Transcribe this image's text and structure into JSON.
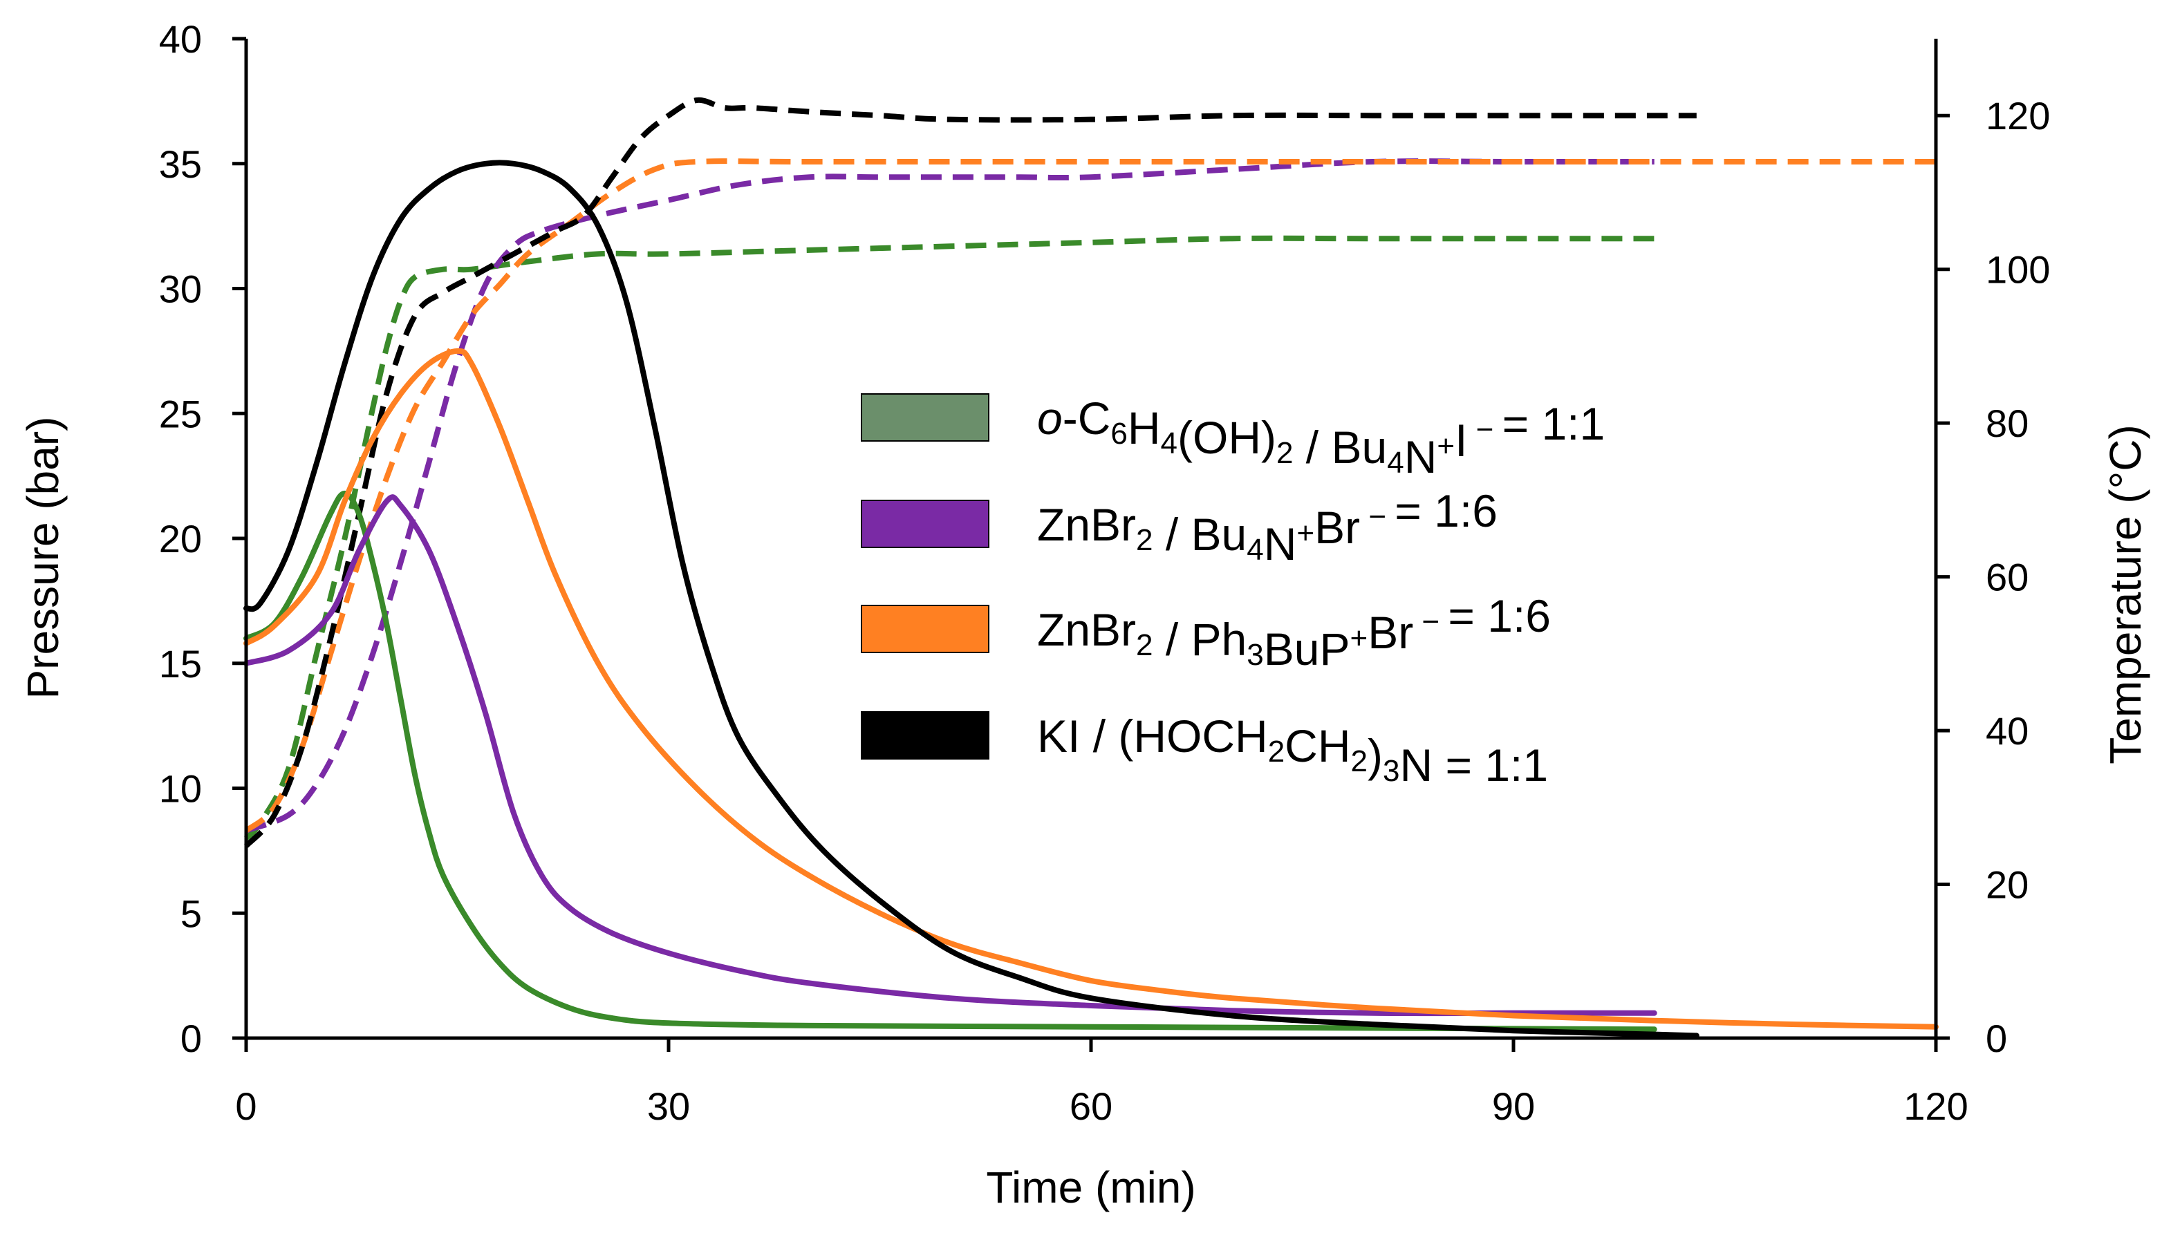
{
  "chart_data": {
    "type": "line",
    "title": "",
    "xlabel": "Time (min)",
    "ylabel": "Pressure (bar)",
    "y2label": "Temperature (°C)",
    "xlim": [
      0,
      120
    ],
    "ylim": [
      0,
      40
    ],
    "y2lim": [
      0,
      130
    ],
    "xticks": [
      "0",
      "30",
      "60",
      "90",
      "120"
    ],
    "yticks": [
      "0",
      "5",
      "10",
      "15",
      "20",
      "25",
      "30",
      "35",
      "40"
    ],
    "y2ticks": [
      "0",
      "20",
      "40",
      "60",
      "80",
      "100",
      "120"
    ],
    "grid": false,
    "legend_position": "center-right",
    "line_styles": {
      "pressure": "solid",
      "temperature": "dashed"
    },
    "series": [
      {
        "name": "o-C6H4(OH)2 / Bu4N+I− = 1:1",
        "legend": {
          "prefix": "o",
          "parts": [
            [
              "-C",
              ""
            ],
            [
              "6",
              "sub"
            ],
            [
              "H",
              ""
            ],
            [
              "4",
              "sub"
            ],
            [
              "(OH)",
              ""
            ],
            [
              "2",
              "sub"
            ],
            [
              " / Bu",
              ""
            ],
            [
              "4",
              "sub"
            ],
            [
              "N",
              ""
            ],
            [
              "+",
              "sup"
            ],
            [
              "I",
              ""
            ],
            [
              " − ",
              "sup"
            ],
            [
              "= 1:1",
              ""
            ]
          ]
        },
        "color": "#3a8a2a",
        "swatch_color": "#6b8f6b",
        "pressure": [
          [
            0,
            16
          ],
          [
            2,
            16.6
          ],
          [
            4,
            18.5
          ],
          [
            6,
            21
          ],
          [
            7,
            21.8
          ],
          [
            8,
            21
          ],
          [
            9,
            19
          ],
          [
            10,
            16.5
          ],
          [
            11,
            13.5
          ],
          [
            12,
            10.5
          ],
          [
            13,
            8.2
          ],
          [
            14,
            6.5
          ],
          [
            16,
            4.5
          ],
          [
            18,
            3
          ],
          [
            20,
            2
          ],
          [
            23,
            1.2
          ],
          [
            26,
            0.8
          ],
          [
            30,
            0.6
          ],
          [
            40,
            0.5
          ],
          [
            60,
            0.45
          ],
          [
            80,
            0.4
          ],
          [
            100,
            0.35
          ]
        ],
        "temperature": [
          [
            0,
            26
          ],
          [
            1,
            28
          ],
          [
            3,
            35
          ],
          [
            5,
            50
          ],
          [
            7,
            65
          ],
          [
            9,
            82
          ],
          [
            10,
            90
          ],
          [
            11,
            96
          ],
          [
            12,
            99
          ],
          [
            14,
            100
          ],
          [
            16,
            100
          ],
          [
            20,
            101
          ],
          [
            25,
            102
          ],
          [
            30,
            102
          ],
          [
            40,
            102.5
          ],
          [
            50,
            103
          ],
          [
            60,
            103.5
          ],
          [
            70,
            104
          ],
          [
            80,
            104
          ],
          [
            90,
            104
          ],
          [
            100,
            104
          ]
        ]
      },
      {
        "name": "ZnBr2 / Bu4N+Br− = 1:6",
        "legend": {
          "prefix": "",
          "parts": [
            [
              "ZnBr",
              ""
            ],
            [
              "2",
              "sub"
            ],
            [
              " / Bu",
              ""
            ],
            [
              "4",
              "sub"
            ],
            [
              "N",
              ""
            ],
            [
              "+",
              "sup"
            ],
            [
              "Br",
              ""
            ],
            [
              " − ",
              "sup"
            ],
            [
              "= 1:6",
              ""
            ]
          ]
        },
        "color": "#7a2aa5",
        "swatch_color": "#7a2aa5",
        "pressure": [
          [
            0,
            15
          ],
          [
            3,
            15.5
          ],
          [
            6,
            17
          ],
          [
            8,
            19.5
          ],
          [
            10,
            21.5
          ],
          [
            11,
            21.3
          ],
          [
            13,
            19.5
          ],
          [
            15,
            16.5
          ],
          [
            17,
            13
          ],
          [
            19,
            9
          ],
          [
            21,
            6.5
          ],
          [
            23,
            5.2
          ],
          [
            26,
            4.2
          ],
          [
            30,
            3.4
          ],
          [
            35,
            2.7
          ],
          [
            40,
            2.2
          ],
          [
            50,
            1.6
          ],
          [
            60,
            1.3
          ],
          [
            70,
            1.1
          ],
          [
            80,
            1.0
          ],
          [
            90,
            1.0
          ],
          [
            100,
            1.0
          ]
        ],
        "temperature": [
          [
            0,
            27
          ],
          [
            3,
            29
          ],
          [
            5,
            33
          ],
          [
            7,
            40
          ],
          [
            9,
            50
          ],
          [
            11,
            62
          ],
          [
            13,
            75
          ],
          [
            15,
            88
          ],
          [
            17,
            98
          ],
          [
            19,
            103
          ],
          [
            21,
            105
          ],
          [
            25,
            107
          ],
          [
            30,
            109
          ],
          [
            35,
            111
          ],
          [
            40,
            112
          ],
          [
            45,
            112
          ],
          [
            50,
            112
          ],
          [
            55,
            112
          ],
          [
            60,
            112
          ],
          [
            70,
            113
          ],
          [
            80,
            114
          ],
          [
            90,
            114
          ],
          [
            100,
            114
          ]
        ]
      },
      {
        "name": "ZnBr2 / Ph3BuP+Br− = 1:6",
        "legend": {
          "prefix": "",
          "parts": [
            [
              "ZnBr",
              ""
            ],
            [
              "2",
              "sub"
            ],
            [
              " / Ph",
              ""
            ],
            [
              "3",
              "sub"
            ],
            [
              "BuP",
              ""
            ],
            [
              "+",
              "sup"
            ],
            [
              "Br",
              ""
            ],
            [
              " − ",
              "sup"
            ],
            [
              "= 1:6",
              ""
            ]
          ]
        },
        "color": "#ff8022",
        "swatch_color": "#ff8022",
        "pressure": [
          [
            0,
            15.8
          ],
          [
            2,
            16.5
          ],
          [
            5,
            18.5
          ],
          [
            7,
            21.5
          ],
          [
            9,
            24
          ],
          [
            11,
            25.8
          ],
          [
            13,
            27
          ],
          [
            15,
            27.5
          ],
          [
            16,
            27
          ],
          [
            18,
            24.5
          ],
          [
            20,
            21.5
          ],
          [
            22,
            18.5
          ],
          [
            25,
            15
          ],
          [
            28,
            12.5
          ],
          [
            32,
            10
          ],
          [
            36,
            8
          ],
          [
            40,
            6.5
          ],
          [
            45,
            5
          ],
          [
            50,
            3.8
          ],
          [
            55,
            3
          ],
          [
            60,
            2.3
          ],
          [
            65,
            1.9
          ],
          [
            70,
            1.6
          ],
          [
            80,
            1.2
          ],
          [
            90,
            0.9
          ],
          [
            100,
            0.7
          ],
          [
            110,
            0.55
          ],
          [
            120,
            0.45
          ]
        ],
        "temperature": [
          [
            0,
            27
          ],
          [
            2,
            30
          ],
          [
            4,
            38
          ],
          [
            6,
            50
          ],
          [
            8,
            62
          ],
          [
            10,
            73
          ],
          [
            12,
            82
          ],
          [
            14,
            88
          ],
          [
            16,
            94
          ],
          [
            18,
            98
          ],
          [
            20,
            102
          ],
          [
            23,
            106
          ],
          [
            26,
            110
          ],
          [
            29,
            113
          ],
          [
            32,
            114
          ],
          [
            40,
            114
          ],
          [
            60,
            114
          ],
          [
            80,
            114
          ],
          [
            100,
            114
          ],
          [
            120,
            114
          ]
        ]
      },
      {
        "name": "KI / (HOCH2CH2)3N = 1:1",
        "legend": {
          "prefix": "",
          "parts": [
            [
              "KI / (HOCH",
              ""
            ],
            [
              "2",
              "sub"
            ],
            [
              "CH",
              ""
            ],
            [
              "2",
              "sub"
            ],
            [
              ")",
              ""
            ],
            [
              "3",
              "sub"
            ],
            [
              "N = 1:1",
              ""
            ]
          ]
        },
        "color": "#000000",
        "swatch_color": "#000000",
        "pressure": [
          [
            0,
            17.2
          ],
          [
            1,
            17.4
          ],
          [
            3,
            19.5
          ],
          [
            5,
            23
          ],
          [
            7,
            27
          ],
          [
            9,
            30.5
          ],
          [
            11,
            32.8
          ],
          [
            13,
            34
          ],
          [
            15,
            34.7
          ],
          [
            17,
            35
          ],
          [
            19,
            35
          ],
          [
            21,
            34.7
          ],
          [
            23,
            34
          ],
          [
            25,
            32.5
          ],
          [
            27,
            29.5
          ],
          [
            29,
            24.5
          ],
          [
            31,
            19
          ],
          [
            33,
            15
          ],
          [
            35,
            12
          ],
          [
            38,
            9.5
          ],
          [
            41,
            7.5
          ],
          [
            45,
            5.5
          ],
          [
            50,
            3.5
          ],
          [
            55,
            2.4
          ],
          [
            60,
            1.6
          ],
          [
            70,
            0.9
          ],
          [
            80,
            0.55
          ],
          [
            90,
            0.3
          ],
          [
            100,
            0.15
          ],
          [
            103,
            0.1
          ]
        ],
        "temperature": [
          [
            0,
            25
          ],
          [
            2,
            29
          ],
          [
            4,
            38
          ],
          [
            6,
            52
          ],
          [
            8,
            68
          ],
          [
            10,
            84
          ],
          [
            12,
            94
          ],
          [
            14,
            97
          ],
          [
            16,
            99
          ],
          [
            18,
            101
          ],
          [
            20,
            103
          ],
          [
            22,
            105
          ],
          [
            24,
            107
          ],
          [
            26,
            112
          ],
          [
            28,
            117
          ],
          [
            30,
            120
          ],
          [
            32,
            122
          ],
          [
            34,
            121
          ],
          [
            36,
            121
          ],
          [
            40,
            120.5
          ],
          [
            45,
            120
          ],
          [
            50,
            119.5
          ],
          [
            60,
            119.5
          ],
          [
            70,
            120
          ],
          [
            80,
            120
          ],
          [
            90,
            120
          ],
          [
            103,
            120
          ]
        ]
      }
    ]
  }
}
